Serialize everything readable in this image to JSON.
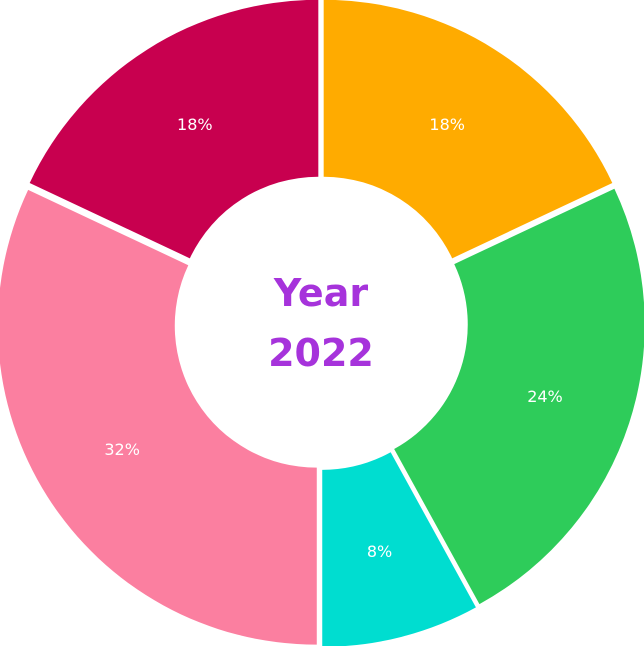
{
  "chart_data": {
    "type": "pie",
    "variant": "donut",
    "center_label": [
      "Year",
      "2022"
    ],
    "categories": [
      "",
      "",
      "",
      "",
      ""
    ],
    "values": [
      18,
      24,
      8,
      32,
      18
    ],
    "labels": [
      "18%",
      "24%",
      "8%",
      "32%",
      "18%"
    ],
    "colors": [
      "#ffab00",
      "#2ecc5a",
      "#00ddd0",
      "#fb7fa0",
      "#c8004f"
    ],
    "center_text_color": "#a633db",
    "start_angle": "12 o'clock, clockwise",
    "grid": false,
    "legend": "none"
  }
}
